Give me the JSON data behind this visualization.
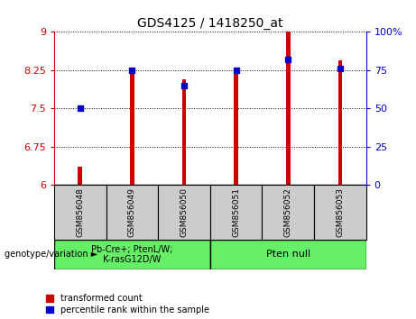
{
  "title": "GDS4125 / 1418250_at",
  "samples": [
    "GSM856048",
    "GSM856049",
    "GSM856050",
    "GSM856051",
    "GSM856052",
    "GSM856053"
  ],
  "red_bar_values": [
    6.35,
    8.27,
    8.08,
    8.28,
    9.0,
    8.45
  ],
  "blue_dot_values": [
    50,
    75,
    65,
    75,
    82,
    76
  ],
  "ylim_left": [
    6,
    9
  ],
  "ylim_right": [
    0,
    100
  ],
  "yticks_left": [
    6,
    6.75,
    7.5,
    8.25,
    9
  ],
  "yticks_right": [
    0,
    25,
    50,
    75,
    100
  ],
  "yticklabels_left": [
    "6",
    "6.75",
    "7.5",
    "8.25",
    "9"
  ],
  "yticklabels_right": [
    "0",
    "25",
    "50",
    "75",
    "100%"
  ],
  "baseline": 6,
  "bar_color": "#cc0000",
  "dot_color": "#0000cc",
  "group1_label": "Pb-Cre+; PtenL/W;\nK-rasG12D/W",
  "group2_label": "Pten null",
  "group_label_bg": "#66ee66",
  "sample_bg": "#cccccc",
  "legend_red_label": "transformed count",
  "legend_blue_label": "percentile rank within the sample",
  "genotype_label": "genotype/variation",
  "bar_width": 0.08,
  "dot_size": 5,
  "n_group1": 3,
  "n_group2": 3
}
